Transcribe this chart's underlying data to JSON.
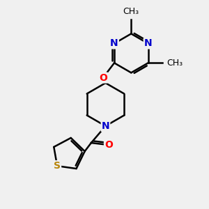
{
  "bg_color": "#f0f0f0",
  "atom_colors": {
    "C": "#000000",
    "N": "#0000cc",
    "O": "#ff0000",
    "S": "#b8860b"
  },
  "bond_color": "#000000",
  "bond_width": 1.8,
  "font_size": 10,
  "methyl_fontsize": 9
}
